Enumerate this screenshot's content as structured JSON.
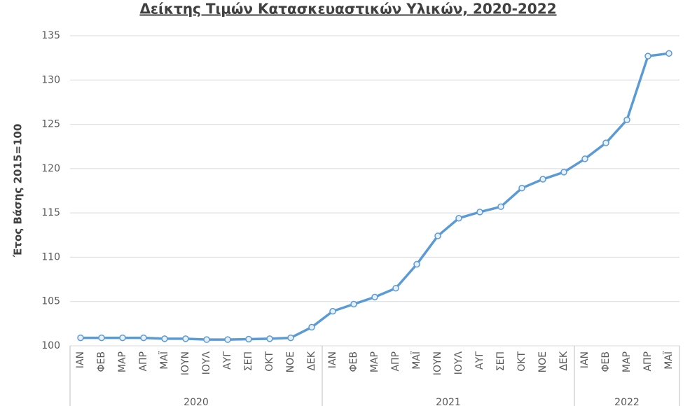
{
  "chart_data": {
    "type": "line",
    "title": "Δείκτης Τιμών Κατασκευαστικών Υλικών, 2020-2022",
    "y_label": "Έτος Βάσης 2015=100",
    "groups": [
      {
        "label": "2020",
        "categories": [
          "ΙΑΝ",
          "ΦΕΒ",
          "ΜΑΡ",
          "ΑΠΡ",
          "ΜΑΪ",
          "ΙΟΥΝ",
          "ΙΟΥΛ",
          "ΑΥΓ",
          "ΣΕΠ",
          "ΟΚΤ",
          "ΝΟΕ",
          "ΔΕΚ"
        ]
      },
      {
        "label": "2021",
        "categories": [
          "ΙΑΝ",
          "ΦΕΒ",
          "ΜΑΡ",
          "ΑΠΡ",
          "ΜΑΪ",
          "ΙΟΥΝ",
          "ΙΟΥΛ",
          "ΑΥΓ",
          "ΣΕΠ",
          "ΟΚΤ",
          "ΝΟΕ",
          "ΔΕΚ"
        ]
      },
      {
        "label": "2022",
        "categories": [
          "ΙΑΝ",
          "ΦΕΒ",
          "ΜΑΡ",
          "ΑΠΡ",
          "ΜΑΪ"
        ]
      }
    ],
    "values": [
      100.9,
      100.9,
      100.9,
      100.9,
      100.8,
      100.8,
      100.7,
      100.7,
      100.75,
      100.8,
      100.9,
      102.1,
      103.9,
      104.7,
      105.5,
      106.5,
      109.2,
      112.4,
      114.4,
      115.1,
      115.7,
      117.8,
      118.8,
      119.6,
      121.1,
      122.9,
      125.5,
      132.7,
      133.0
    ],
    "color": "#5b9bd5",
    "ylim": [
      100,
      135
    ],
    "yticks": [
      100,
      105,
      110,
      115,
      120,
      125,
      130,
      135
    ],
    "grid": true
  }
}
